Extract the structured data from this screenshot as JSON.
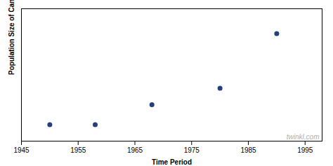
{
  "chart_data": {
    "type": "scatter",
    "x": [
      1950,
      1958,
      1968,
      1980,
      1990
    ],
    "values": [
      1.0,
      1.0,
      2.2,
      3.2,
      6.5
    ],
    "color": "#263f7a",
    "xlabel": "Time Period",
    "ylabel": "Population Size of Cane Toad",
    "xlim": [
      1945,
      1998
    ],
    "ylim": [
      0,
      8.0
    ],
    "xticks": [
      1945,
      1955,
      1965,
      1975,
      1985,
      1995
    ],
    "tick_labels": "x",
    "grid": false,
    "annotation": "twinkl.com"
  }
}
